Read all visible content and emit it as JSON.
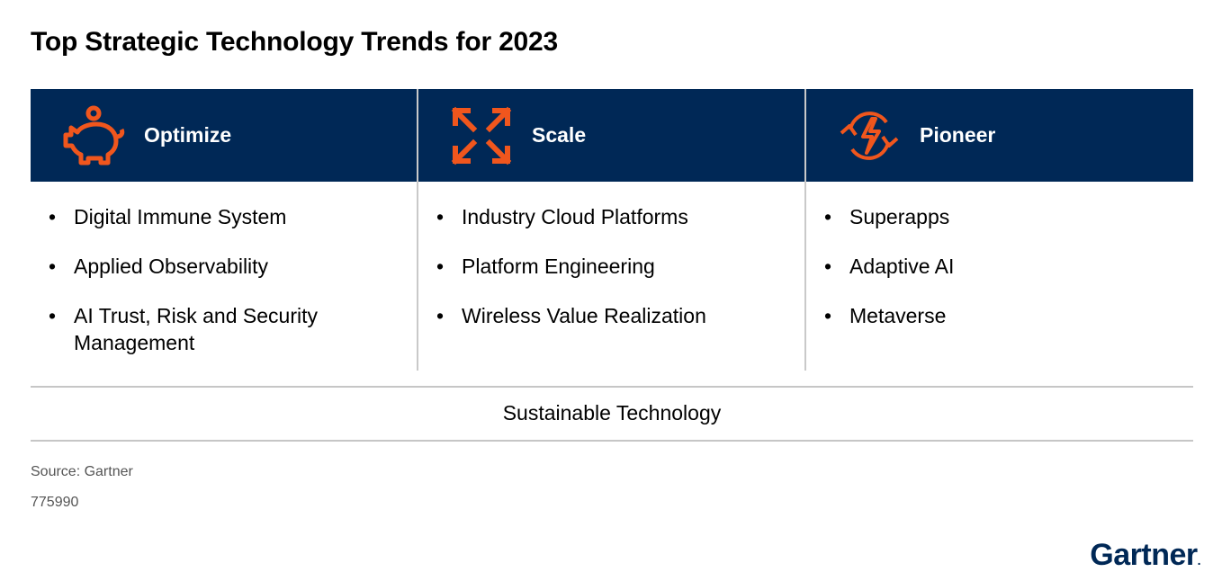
{
  "title": "Top Strategic Technology Trends for 2023",
  "colors": {
    "header_bg": "#002856",
    "icon_orange": "#f0561d",
    "divider": "#c6c6c6"
  },
  "columns": [
    {
      "label": "Optimize",
      "icon": "piggy-bank-icon",
      "items": [
        "Digital Immune System",
        "Applied Observability",
        "AI Trust, Risk and Security Management"
      ]
    },
    {
      "label": "Scale",
      "icon": "expand-arrows-icon",
      "items": [
        "Industry Cloud Platforms",
        "Platform Engineering",
        "Wireless Value Realization"
      ]
    },
    {
      "label": "Pioneer",
      "icon": "lightning-cycle-icon",
      "items": [
        "Superapps",
        "Adaptive AI",
        "Metaverse"
      ]
    }
  ],
  "cross_trend": "Sustainable Technology",
  "source": "Source: Gartner",
  "doc_id": "775990",
  "logo": {
    "text": "Gartner",
    "dot": "."
  }
}
